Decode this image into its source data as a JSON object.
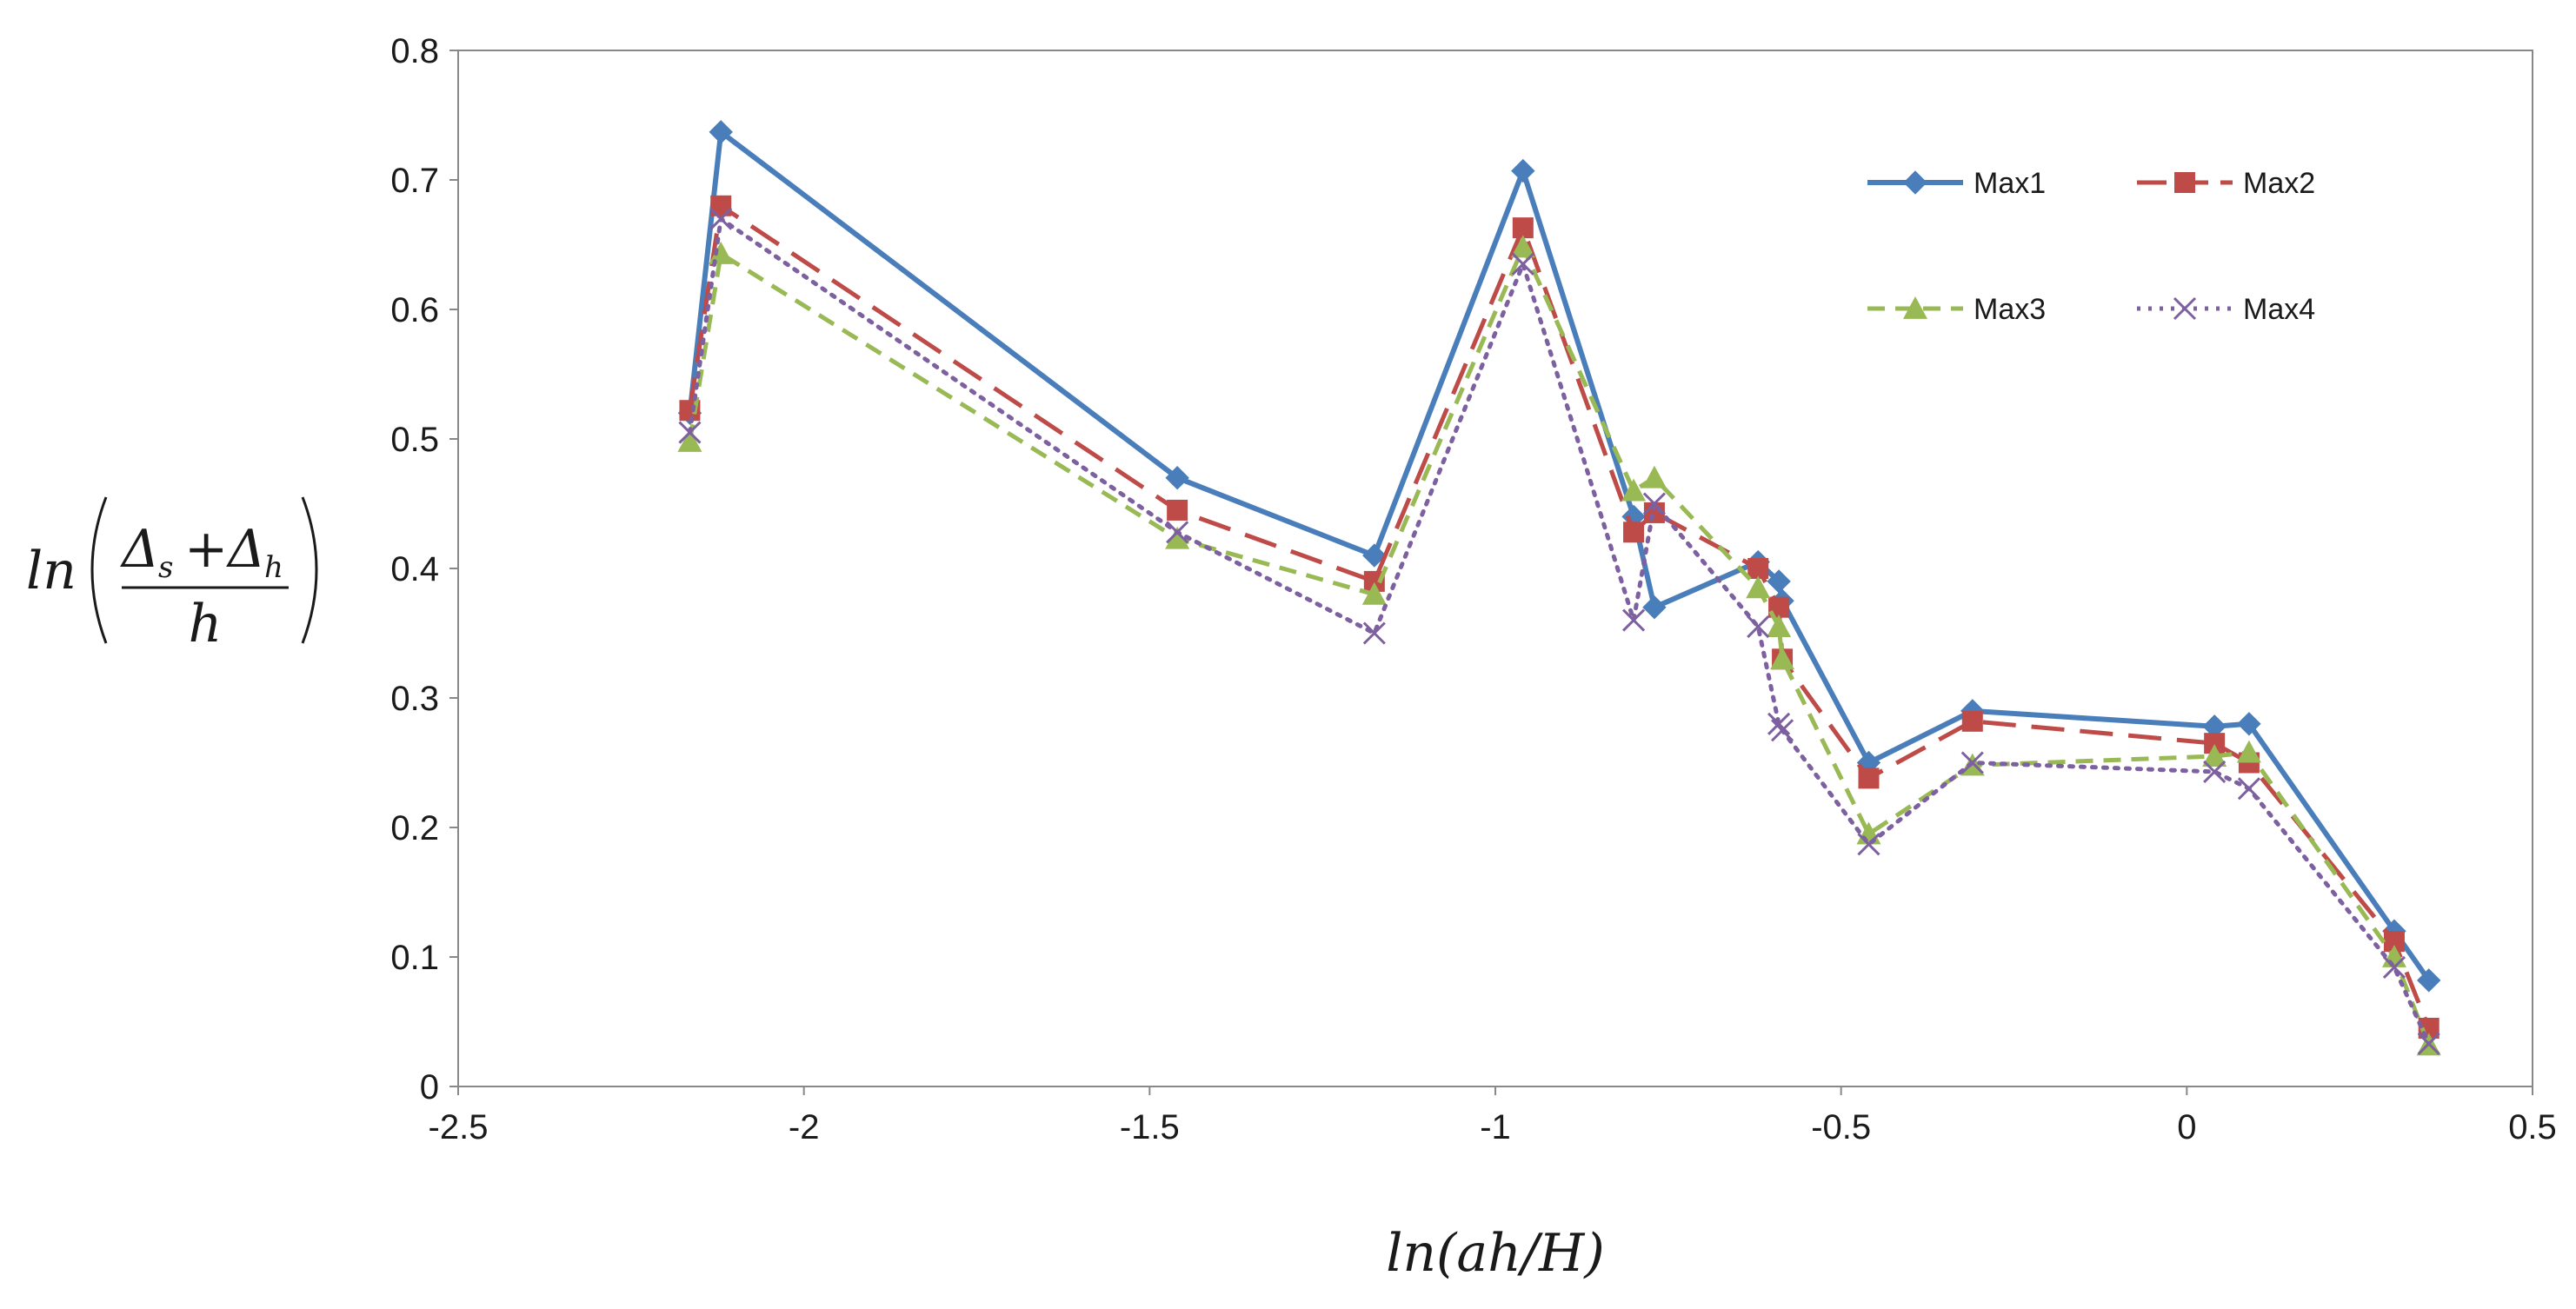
{
  "chart_data": {
    "type": "line",
    "xlim": [
      -2.5,
      0.5
    ],
    "ylim": [
      0,
      0.8
    ],
    "x_ticks": [
      "-2.5",
      "-2",
      "-1.5",
      "-1",
      "-0.5",
      "0",
      "0.5"
    ],
    "y_ticks": [
      "0",
      "0.1",
      "0.2",
      "0.3",
      "0.4",
      "0.5",
      "0.6",
      "0.7",
      "0.8"
    ],
    "x_tick_values": [
      -2.5,
      -2,
      -1.5,
      -1,
      -0.5,
      0,
      0.5
    ],
    "y_tick_values": [
      0,
      0.1,
      0.2,
      0.3,
      0.4,
      0.5,
      0.6,
      0.7,
      0.8
    ],
    "xlabel": {
      "text": "ln(ah/H)"
    },
    "ylabel": {
      "prefix": "ln",
      "numerator_a": "Δ",
      "sub_a": "s",
      "plus": "+",
      "numerator_b": "Δ",
      "sub_b": "h",
      "denominator": "h"
    },
    "grid": false,
    "legend": "top-right",
    "series": [
      {
        "name": "Max1",
        "color": "#4a7ebb",
        "marker": "diamond",
        "dash": "solid",
        "x": [
          -2.165,
          -2.12,
          -1.46,
          -1.175,
          -0.96,
          -0.8,
          -0.77,
          -0.62,
          -0.59,
          -0.585,
          -0.46,
          -0.31,
          0.04,
          0.09,
          0.3,
          0.35
        ],
        "y": [
          0.52,
          0.737,
          0.47,
          0.41,
          0.707,
          0.44,
          0.37,
          0.405,
          0.39,
          0.375,
          0.25,
          0.29,
          0.278,
          0.28,
          0.12,
          0.082
        ]
      },
      {
        "name": "Max2",
        "color": "#be4b48",
        "marker": "square",
        "dash": "longdash",
        "x": [
          -2.165,
          -2.12,
          -1.46,
          -1.175,
          -0.96,
          -0.8,
          -0.77,
          -0.62,
          -0.59,
          -0.585,
          -0.46,
          -0.31,
          0.04,
          0.09,
          0.3,
          0.35
        ],
        "y": [
          0.522,
          0.68,
          0.445,
          0.39,
          0.663,
          0.428,
          0.443,
          0.4,
          0.37,
          0.33,
          0.238,
          0.282,
          0.265,
          0.25,
          0.112,
          0.045
        ]
      },
      {
        "name": "Max3",
        "color": "#98b954",
        "marker": "triangle",
        "dash": "dash",
        "x": [
          -2.165,
          -2.12,
          -1.46,
          -1.175,
          -0.96,
          -0.8,
          -0.77,
          -0.62,
          -0.59,
          -0.585,
          -0.46,
          -0.31,
          0.04,
          0.09,
          0.3,
          0.35
        ],
        "y": [
          0.498,
          0.643,
          0.423,
          0.38,
          0.648,
          0.46,
          0.47,
          0.385,
          0.355,
          0.33,
          0.195,
          0.248,
          0.255,
          0.258,
          0.1,
          0.032
        ]
      },
      {
        "name": "Max4",
        "color": "#7d60a0",
        "marker": "x",
        "dash": "dot",
        "x": [
          -2.165,
          -2.12,
          -1.46,
          -1.175,
          -0.96,
          -0.8,
          -0.77,
          -0.62,
          -0.59,
          -0.585,
          -0.46,
          -0.31,
          0.04,
          0.09,
          0.3,
          0.35
        ],
        "y": [
          0.505,
          0.67,
          0.428,
          0.35,
          0.635,
          0.36,
          0.45,
          0.355,
          0.28,
          0.275,
          0.187,
          0.25,
          0.243,
          0.23,
          0.092,
          0.033
        ]
      }
    ]
  }
}
